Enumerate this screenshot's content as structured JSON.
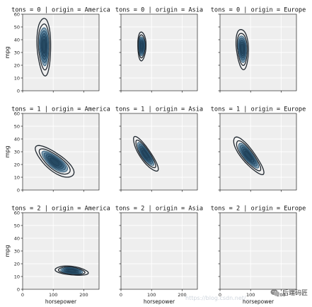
{
  "chart_data": {
    "type": "kde-facet-grid",
    "xlabel": "horsepower",
    "ylabel": "mpg",
    "xlim": [
      0,
      250
    ],
    "ylim": [
      0,
      60
    ],
    "xticks": [
      0,
      100,
      200
    ],
    "yticks": [
      0,
      10,
      20,
      30,
      40,
      50,
      60
    ],
    "grid": true,
    "colors": {
      "fill": "#3f7fa6",
      "fill_dark": "#1f3f57",
      "contour": "#202830",
      "facet_bg": "#eeeeee",
      "grid": "#ffffff"
    },
    "row_labels": [
      "tons = 0",
      "tons = 1",
      "tons = 2"
    ],
    "col_labels": [
      "origin = America",
      "origin = Asia",
      "origin = Europe"
    ],
    "panels": [
      {
        "title": "tons = 0 | origin = America",
        "kde": {
          "cx": 70,
          "cy": 35,
          "sx": 10,
          "sy": 10,
          "rho": -0.1
        }
      },
      {
        "title": "tons = 0 | origin = Asia",
        "kde": {
          "cx": 68,
          "cy": 35,
          "sx": 6,
          "sy": 5,
          "rho": 0.0
        }
      },
      {
        "title": "tons = 0 | origin = Europe",
        "kde": {
          "cx": 73,
          "cy": 33,
          "sx": 9,
          "sy": 7,
          "rho": -0.2
        }
      },
      {
        "title": "tons = 1 | origin = America",
        "kde": {
          "cx": 105,
          "cy": 22,
          "sx": 28,
          "sy": 5.5,
          "rho": -0.75
        }
      },
      {
        "title": "tons = 1 | origin = Asia",
        "kde": {
          "cx": 80,
          "cy": 28,
          "sx": 18,
          "sy": 6,
          "rho": -0.85
        }
      },
      {
        "title": "tons = 1 | origin = Europe",
        "kde": {
          "cx": 92,
          "cy": 27,
          "sx": 22,
          "sy": 6.5,
          "rho": -0.85
        }
      },
      {
        "title": "tons = 2 | origin = America",
        "kde": {
          "cx": 160,
          "cy": 14.5,
          "sx": 24,
          "sy": 1.6,
          "rho": -0.35
        }
      },
      {
        "title": "tons = 2 | origin = Asia",
        "kde": null
      },
      {
        "title": "tons = 2 | origin = Europe",
        "kde": null
      }
    ]
  },
  "watermark": {
    "text": "后端码匠",
    "faint": "https://blog.csdn.net/...",
    "icon": "wechat-icon"
  }
}
